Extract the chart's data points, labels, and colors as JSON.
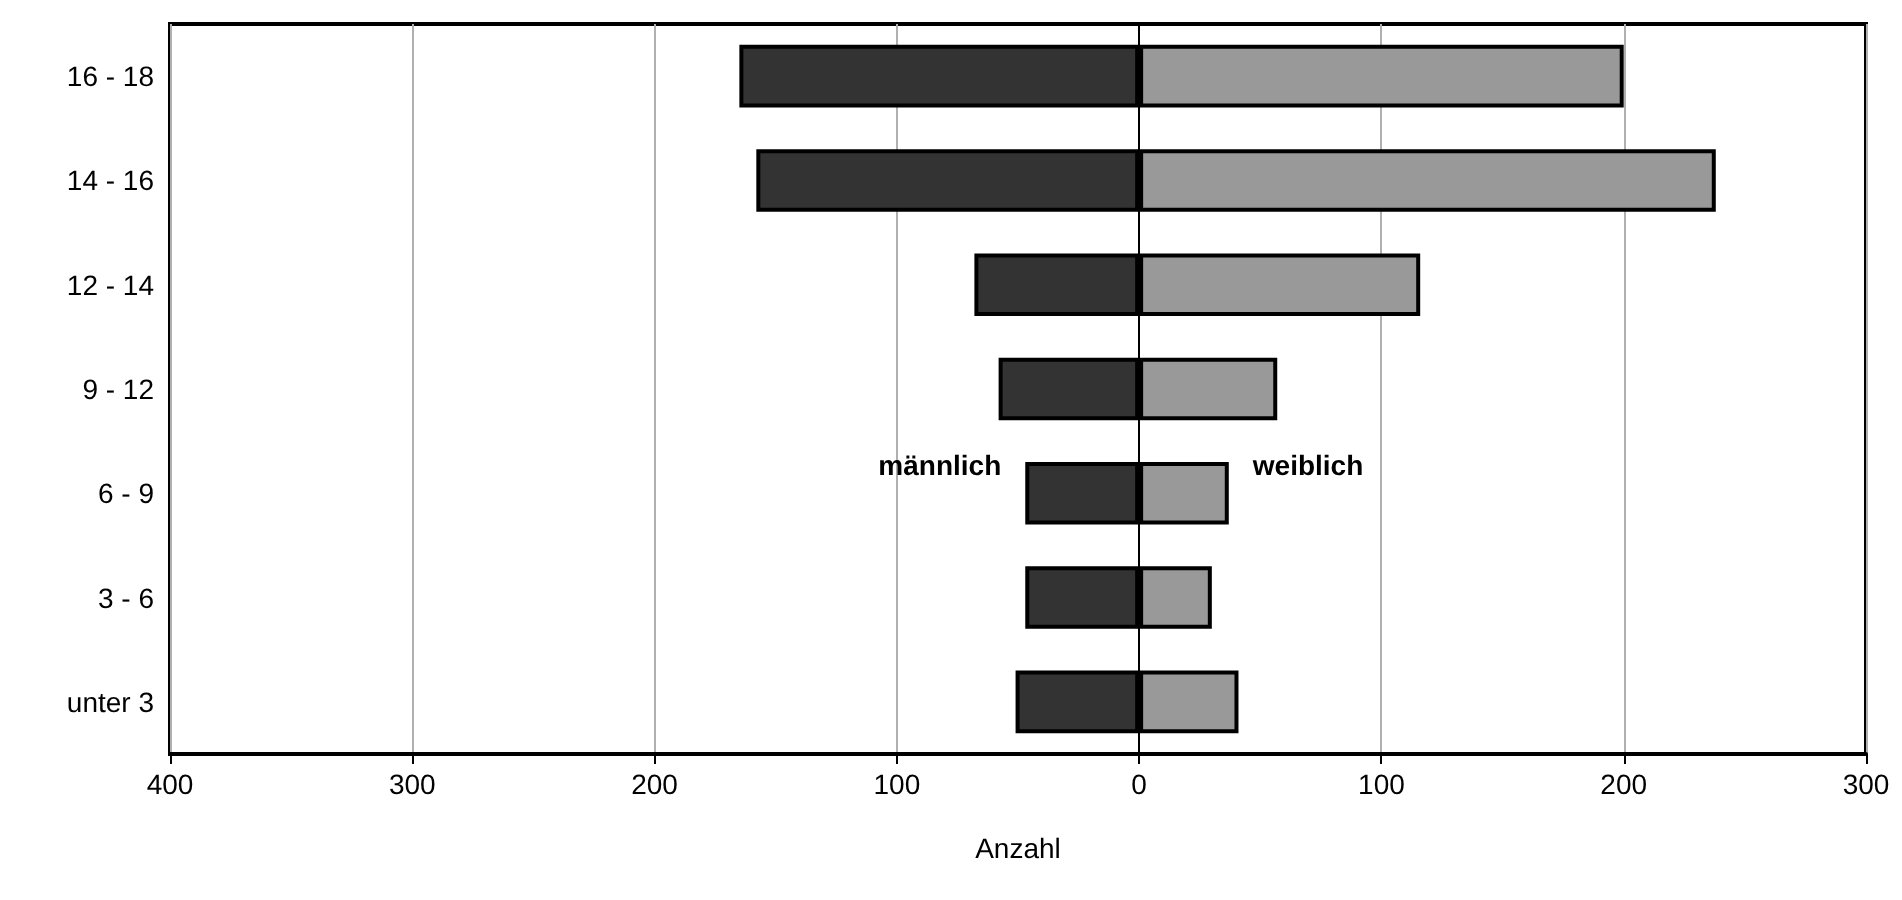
{
  "chart_data": {
    "type": "bar",
    "orientation": "horizontal",
    "xlabel": "Anzahl",
    "categories": [
      "16 - 18",
      "14 - 16",
      "12 - 14",
      "9 - 12",
      "6 - 9",
      "3 - 6",
      "unter 3"
    ],
    "series": [
      {
        "name": "männlich",
        "color": "#333333",
        "values": [
          -165,
          -158,
          -68,
          -58,
          -47,
          -47,
          -51
        ]
      },
      {
        "name": "weiblich",
        "color": "#999999",
        "values": [
          200,
          238,
          116,
          57,
          37,
          30,
          41
        ]
      }
    ],
    "xlim": [
      -400,
      300
    ],
    "xticks": [
      {
        "value": -400,
        "label": "400"
      },
      {
        "value": -300,
        "label": "300"
      },
      {
        "value": -200,
        "label": "200"
      },
      {
        "value": -100,
        "label": "100"
      },
      0,
      100,
      200,
      300
    ],
    "grid": "x",
    "legend": false,
    "stacked": true
  }
}
